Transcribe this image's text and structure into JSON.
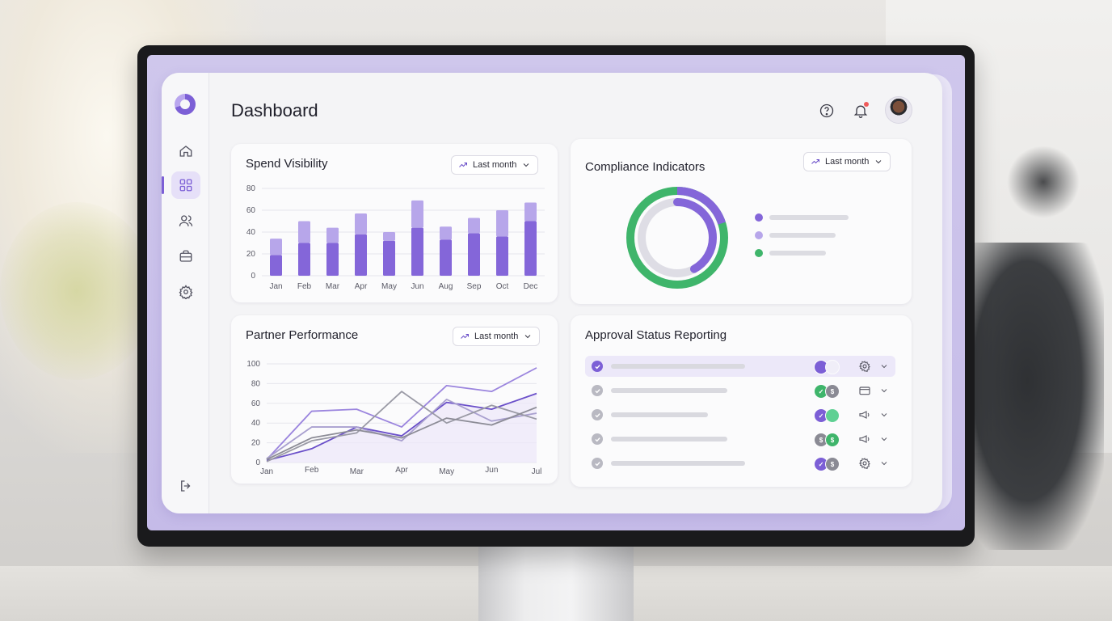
{
  "app": {
    "page_title": "Dashboard"
  },
  "sidebar": {
    "items": [
      {
        "name": "home-icon",
        "active": false
      },
      {
        "name": "dashboard-grid-icon",
        "active": true
      },
      {
        "name": "users-icon",
        "active": false
      },
      {
        "name": "briefcase-icon",
        "active": false
      },
      {
        "name": "settings-gear-icon",
        "active": false
      }
    ],
    "bottom_item": {
      "name": "logout-icon"
    }
  },
  "header": {
    "icons": [
      "help-icon",
      "bell-icon",
      "avatar"
    ]
  },
  "spend_visibility": {
    "title": "Spend Visibility",
    "filter_label": "Last month",
    "chart_data": {
      "type": "bar",
      "categories": [
        "Jan",
        "Feb",
        "Mar",
        "Apr",
        "May",
        "Jun",
        "Aug",
        "Sep",
        "Oct",
        "Dec"
      ],
      "series": [
        {
          "values": [
            19,
            30,
            30,
            38,
            32,
            44,
            33,
            39,
            36,
            50
          ]
        },
        {
          "values": [
            15,
            20,
            14,
            19,
            8,
            25,
            12,
            14,
            24,
            17
          ]
        }
      ],
      "stacked": true,
      "yticks": [
        0,
        20,
        40,
        60,
        80
      ],
      "ylim": [
        0,
        80
      ],
      "colors": [
        "#8466d9",
        "#b7a6ea"
      ]
    }
  },
  "compliance": {
    "title": "Compliance Indicators",
    "filter_label": "Last month",
    "chart_data": {
      "type": "pie",
      "outer_ring": {
        "color": "#3fb56b",
        "value": 1.0
      },
      "inner_ring": {
        "color": "#8466d9",
        "value": 0.42,
        "track": "#dedde5"
      }
    },
    "legend_colors": [
      "#8466d9",
      "#b7a6ea",
      "#3fb56b"
    ]
  },
  "partner_performance": {
    "title": "Partner Performance",
    "filter_label": "Last month",
    "chart_data": {
      "type": "line",
      "x": [
        "Jan",
        "Feb",
        "Mar",
        "Apr",
        "May",
        "Jun",
        "Jul"
      ],
      "yticks": [
        0,
        20,
        40,
        60,
        80,
        100
      ],
      "ylim": [
        0,
        100
      ],
      "series": [
        {
          "color": "#9b85de",
          "values": [
            3,
            52,
            54,
            36,
            78,
            72,
            96
          ]
        },
        {
          "color": "#6a4fc9",
          "values": [
            2,
            14,
            36,
            27,
            61,
            54,
            70
          ]
        },
        {
          "color": "#a9a0cf",
          "values": [
            4,
            36,
            36,
            22,
            64,
            42,
            50
          ]
        },
        {
          "color": "#9a9aa5",
          "values": [
            1,
            22,
            30,
            72,
            40,
            58,
            44
          ]
        },
        {
          "color": "#8c8c96",
          "values": [
            3,
            25,
            33,
            25,
            45,
            38,
            56
          ]
        }
      ]
    }
  },
  "approval_status": {
    "title": "Approval Status Reporting",
    "rows": [
      {
        "highlight": true,
        "check_color": "#7c5fd6",
        "bar_width": 166,
        "pills": [
          [
            "#7c5fd6",
            ""
          ],
          [
            "#ffffff",
            ""
          ]
        ],
        "icon": "settings-gear-icon"
      },
      {
        "highlight": false,
        "check_color": "#b9b9c2",
        "bar_width": 144,
        "pills": [
          [
            "#3fb56b",
            "✓"
          ],
          [
            "#8a8a94",
            "$"
          ]
        ],
        "icon": "wallet-icon"
      },
      {
        "highlight": false,
        "check_color": "#b9b9c2",
        "bar_width": 120,
        "pills": [
          [
            "#7c5fd6",
            "✓"
          ],
          [
            "#5fd093",
            ""
          ]
        ],
        "icon": "megaphone-icon"
      },
      {
        "highlight": false,
        "check_color": "#b9b9c2",
        "bar_width": 144,
        "pills": [
          [
            "#8a8a94",
            "$"
          ],
          [
            "#3fb56b",
            "$"
          ]
        ],
        "icon": "megaphone-icon"
      },
      {
        "highlight": false,
        "check_color": "#b9b9c2",
        "bar_width": 166,
        "pills": [
          [
            "#7c5fd6",
            "✓"
          ],
          [
            "#8a8a94",
            "$"
          ]
        ],
        "icon": "settings-gear-icon"
      }
    ]
  }
}
